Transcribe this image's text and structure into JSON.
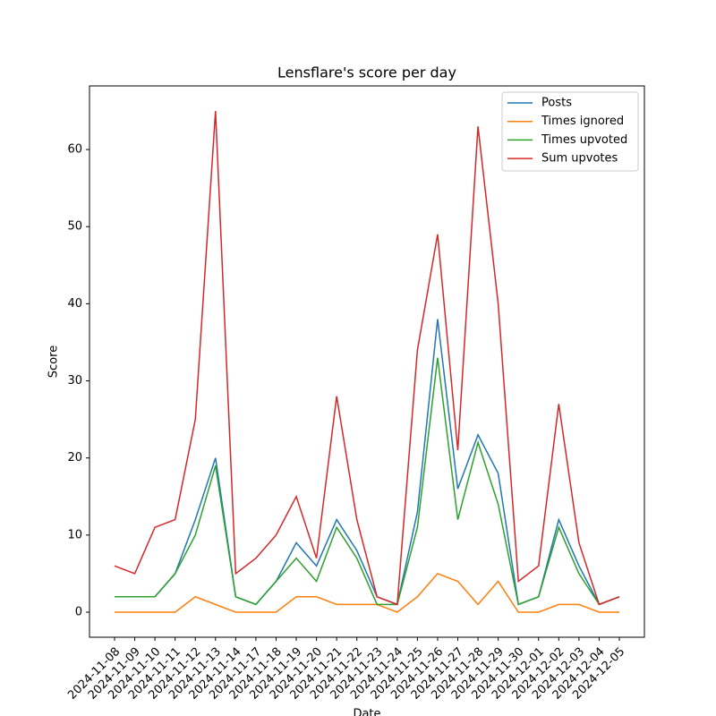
{
  "chart_data": {
    "type": "line",
    "title": "Lensflare's score per day",
    "xlabel": "Date",
    "ylabel": "Score",
    "categories": [
      "2024-11-08",
      "2024-11-09",
      "2024-11-10",
      "2024-11-11",
      "2024-11-12",
      "2024-11-13",
      "2024-11-14",
      "2024-11-17",
      "2024-11-18",
      "2024-11-19",
      "2024-11-20",
      "2024-11-21",
      "2024-11-22",
      "2024-11-23",
      "2024-11-24",
      "2024-11-25",
      "2024-11-26",
      "2024-11-27",
      "2024-11-28",
      "2024-11-29",
      "2024-11-30",
      "2024-12-01",
      "2024-12-02",
      "2024-12-03",
      "2024-12-04",
      "2024-12-05"
    ],
    "series": [
      {
        "name": "Posts",
        "color": "#1f77b4",
        "values": [
          2,
          2,
          2,
          5,
          12,
          20,
          2,
          1,
          4,
          9,
          6,
          12,
          8,
          2,
          1,
          13,
          38,
          16,
          23,
          18,
          1,
          2,
          12,
          6,
          1,
          2
        ]
      },
      {
        "name": "Times ignored",
        "color": "#ff7f0e",
        "values": [
          0,
          0,
          0,
          0,
          2,
          1,
          0,
          0,
          0,
          2,
          2,
          1,
          1,
          1,
          0,
          2,
          5,
          4,
          1,
          4,
          0,
          0,
          1,
          1,
          0,
          0
        ]
      },
      {
        "name": "Times upvoted",
        "color": "#2ca02c",
        "values": [
          2,
          2,
          2,
          5,
          10,
          19,
          2,
          1,
          4,
          7,
          4,
          11,
          7,
          1,
          1,
          11,
          33,
          12,
          22,
          14,
          1,
          2,
          11,
          5,
          1,
          2
        ]
      },
      {
        "name": "Sum upvotes",
        "color": "#d62728",
        "values": [
          6,
          5,
          11,
          12,
          25,
          65,
          5,
          7,
          10,
          15,
          7,
          28,
          12,
          2,
          1,
          34,
          49,
          21,
          63,
          40,
          4,
          6,
          27,
          9,
          1,
          2
        ]
      }
    ],
    "ylim": [
      -3.25,
      68.25
    ],
    "yticks": [
      0,
      10,
      20,
      30,
      40,
      50,
      60
    ],
    "legend": "upper right"
  }
}
